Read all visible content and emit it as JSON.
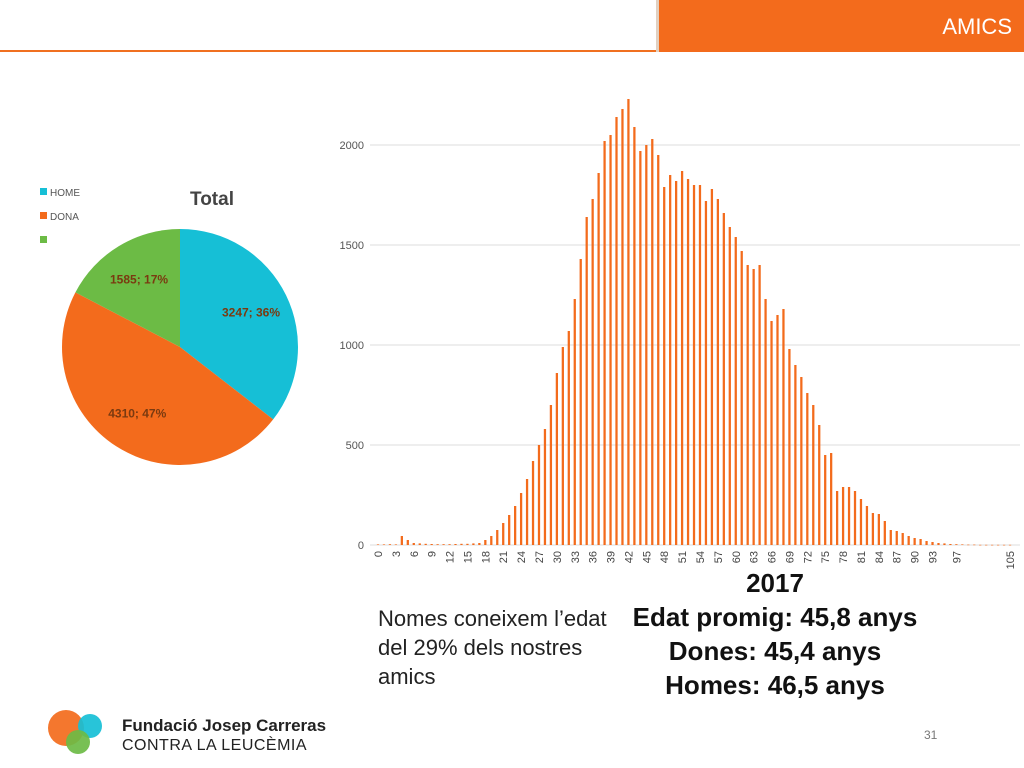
{
  "header": {
    "title": "AMICS"
  },
  "colors": {
    "accent": "#f36b1c",
    "home": "#16bfd6",
    "dona": "#f36b1c",
    "other": "#6cbb45"
  },
  "chart_data": [
    {
      "type": "pie",
      "title": "Total",
      "legend": [
        "HOME",
        "DONA",
        ""
      ],
      "legend_position": "top-left",
      "slices": [
        {
          "label": "HOME",
          "value": 3247,
          "percent": "36%",
          "data_label": "3247; 36%",
          "color": "#16bfd6"
        },
        {
          "label": "DONA",
          "value": 4310,
          "percent": "47%",
          "data_label": "4310; 47%",
          "color": "#f36b1c"
        },
        {
          "label": "",
          "value": 1585,
          "percent": "17%",
          "data_label": "1585; 17%",
          "color": "#6cbb45"
        }
      ]
    },
    {
      "type": "bar",
      "title": "",
      "xlabel": "",
      "ylabel": "",
      "ylim": [
        0,
        2000
      ],
      "yticks": [
        0,
        500,
        1000,
        1500,
        2000
      ],
      "xtick_labels": [
        "0",
        "3",
        "6",
        "9",
        "12",
        "15",
        "18",
        "21",
        "24",
        "27",
        "30",
        "33",
        "36",
        "39",
        "42",
        "45",
        "48",
        "51",
        "54",
        "57",
        "60",
        "63",
        "66",
        "69",
        "72",
        "75",
        "78",
        "81",
        "84",
        "87",
        "90",
        "93",
        "97",
        "105"
      ],
      "grid": "horizontal",
      "color": "#f36b1c",
      "values": [
        3,
        3,
        4,
        3,
        45,
        25,
        10,
        8,
        6,
        5,
        4,
        4,
        4,
        5,
        6,
        6,
        8,
        10,
        25,
        45,
        75,
        110,
        150,
        195,
        260,
        330,
        420,
        500,
        580,
        700,
        860,
        990,
        1070,
        1230,
        1430,
        1640,
        1730,
        1860,
        2020,
        2050,
        2140,
        2180,
        2230,
        2090,
        1970,
        2000,
        2030,
        1950,
        1790,
        1850,
        1820,
        1870,
        1830,
        1800,
        1800,
        1720,
        1780,
        1730,
        1660,
        1590,
        1540,
        1470,
        1400,
        1380,
        1400,
        1230,
        1120,
        1150,
        1180,
        980,
        900,
        840,
        760,
        700,
        600,
        450,
        460,
        270,
        290,
        290,
        270,
        230,
        195,
        160,
        155,
        120,
        75,
        70,
        60,
        45,
        35,
        30,
        20,
        15,
        10,
        8,
        5,
        4,
        3,
        2,
        2,
        1,
        1,
        1,
        1,
        1,
        1
      ]
    }
  ],
  "note": "Nomes coneixem l’edat del 29% dels nostres amics",
  "stats": {
    "year": "2017",
    "mean": "Edat promig: 45,8 anys",
    "women": "Dones: 45,4 anys",
    "men": "Homes: 46,5 anys"
  },
  "brand": {
    "line1": "Fundació Josep Carreras",
    "line2": "CONTRA LA LEUCÈMIA"
  },
  "page_number": "31"
}
